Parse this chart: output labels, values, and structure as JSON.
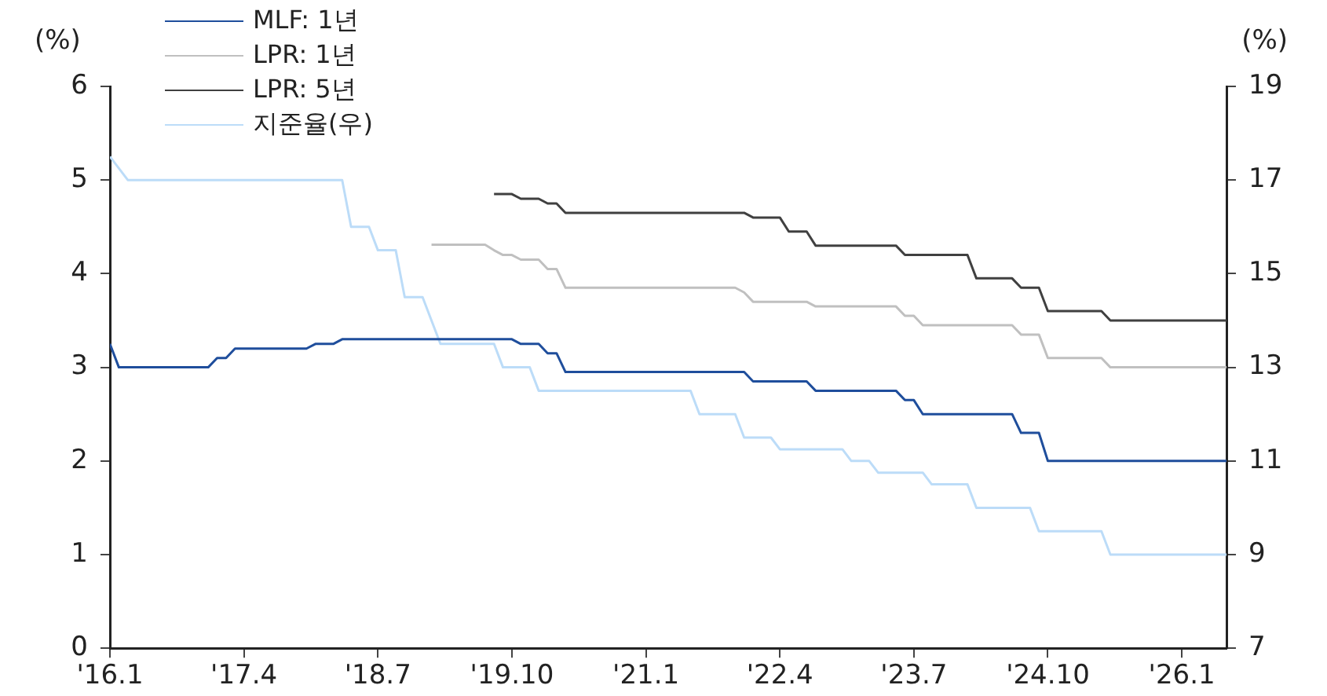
{
  "chart_data": {
    "type": "line",
    "xlabel": null,
    "ylabel": "(%)",
    "y2label": "(%)",
    "xlim": [
      "2016-01",
      "2026-06"
    ],
    "xticks": [
      {
        "value": "2016-01",
        "label": "'16.1"
      },
      {
        "value": "2017-04",
        "label": "'17.4"
      },
      {
        "value": "2018-07",
        "label": "'18.7"
      },
      {
        "value": "2019-10",
        "label": "'19.10"
      },
      {
        "value": "2021-01",
        "label": "'21.1"
      },
      {
        "value": "2022-04",
        "label": "'22.4"
      },
      {
        "value": "2023-07",
        "label": "'23.7"
      },
      {
        "value": "2024-10",
        "label": "'24.10"
      },
      {
        "value": "2026-01",
        "label": "'26.1"
      }
    ],
    "ylim": [
      0,
      6
    ],
    "yticks": [
      0,
      1,
      2,
      3,
      4,
      5,
      6
    ],
    "y2lim": [
      7,
      19
    ],
    "y2ticks": [
      7,
      9,
      11,
      13,
      15,
      17,
      19
    ],
    "legend": "top left",
    "grid": false,
    "marker": "none",
    "line_style": "solid",
    "series": [
      {
        "name": "MLF: 1년",
        "color": "#1f4e9c",
        "x": [
          "2016-01",
          "2016-02",
          "2016-12",
          "2017-01",
          "2017-02",
          "2017-03",
          "2017-11",
          "2017-12",
          "2018-02",
          "2018-03",
          "2019-10",
          "2019-11",
          "2020-01",
          "2020-02",
          "2020-03",
          "2020-04",
          "2021-12",
          "2022-01",
          "2022-07",
          "2022-08",
          "2023-05",
          "2023-06",
          "2023-07",
          "2023-08",
          "2024-06",
          "2024-07",
          "2024-09",
          "2024-10",
          "2026-06"
        ],
        "values": [
          3.25,
          3.0,
          3.0,
          3.1,
          3.1,
          3.2,
          3.2,
          3.25,
          3.25,
          3.3,
          3.3,
          3.25,
          3.25,
          3.15,
          3.15,
          2.95,
          2.95,
          2.85,
          2.85,
          2.75,
          2.75,
          2.65,
          2.65,
          2.5,
          2.5,
          2.3,
          2.3,
          2.0,
          2.0
        ]
      },
      {
        "name": "LPR: 1년",
        "color": "#c0c0c0",
        "x": [
          "2019-01",
          "2019-07",
          "2019-08",
          "2019-09",
          "2019-10",
          "2019-11",
          "2020-01",
          "2020-02",
          "2020-03",
          "2020-04",
          "2021-11",
          "2021-12",
          "2022-01",
          "2022-07",
          "2022-08",
          "2023-05",
          "2023-06",
          "2023-07",
          "2023-08",
          "2024-06",
          "2024-07",
          "2024-09",
          "2024-10",
          "2025-04",
          "2025-05",
          "2026-06"
        ],
        "values": [
          4.31,
          4.31,
          4.25,
          4.2,
          4.2,
          4.15,
          4.15,
          4.05,
          4.05,
          3.85,
          3.85,
          3.8,
          3.7,
          3.7,
          3.65,
          3.65,
          3.55,
          3.55,
          3.45,
          3.45,
          3.35,
          3.35,
          3.1,
          3.1,
          3.0,
          3.0
        ]
      },
      {
        "name": "LPR: 5년",
        "color": "#404040",
        "x": [
          "2019-08",
          "2019-10",
          "2019-11",
          "2020-01",
          "2020-02",
          "2020-03",
          "2020-04",
          "2021-12",
          "2022-01",
          "2022-04",
          "2022-05",
          "2022-07",
          "2022-08",
          "2023-05",
          "2023-06",
          "2024-01",
          "2024-02",
          "2024-06",
          "2024-07",
          "2024-09",
          "2024-10",
          "2025-04",
          "2025-05",
          "2026-06"
        ],
        "values": [
          4.85,
          4.85,
          4.8,
          4.8,
          4.75,
          4.75,
          4.65,
          4.65,
          4.6,
          4.6,
          4.45,
          4.45,
          4.3,
          4.3,
          4.2,
          4.2,
          3.95,
          3.95,
          3.85,
          3.85,
          3.6,
          3.6,
          3.5,
          3.5
        ]
      },
      {
        "name": "지준율(우)",
        "color": "#bcdcf8",
        "axis": "y2",
        "x": [
          "2016-01",
          "2016-03",
          "2018-03",
          "2018-04",
          "2018-06",
          "2018-07",
          "2018-09",
          "2018-10",
          "2018-12",
          "2019-01",
          "2019-02",
          "2019-08",
          "2019-09",
          "2019-12",
          "2020-01",
          "2021-06",
          "2021-07",
          "2021-11",
          "2021-12",
          "2022-03",
          "2022-04",
          "2022-11",
          "2022-12",
          "2023-02",
          "2023-03",
          "2023-08",
          "2023-09",
          "2024-01",
          "2024-02",
          "2024-08",
          "2024-09",
          "2025-04",
          "2025-05",
          "2026-06"
        ],
        "values": [
          17.5,
          17.0,
          17.0,
          16.0,
          16.0,
          15.5,
          15.5,
          14.5,
          14.5,
          14.0,
          13.5,
          13.5,
          13.0,
          13.0,
          12.5,
          12.5,
          12.0,
          12.0,
          11.5,
          11.5,
          11.25,
          11.25,
          11.0,
          11.0,
          10.75,
          10.75,
          10.5,
          10.5,
          10.0,
          10.0,
          9.5,
          9.5,
          9.0,
          9.0
        ]
      }
    ]
  }
}
